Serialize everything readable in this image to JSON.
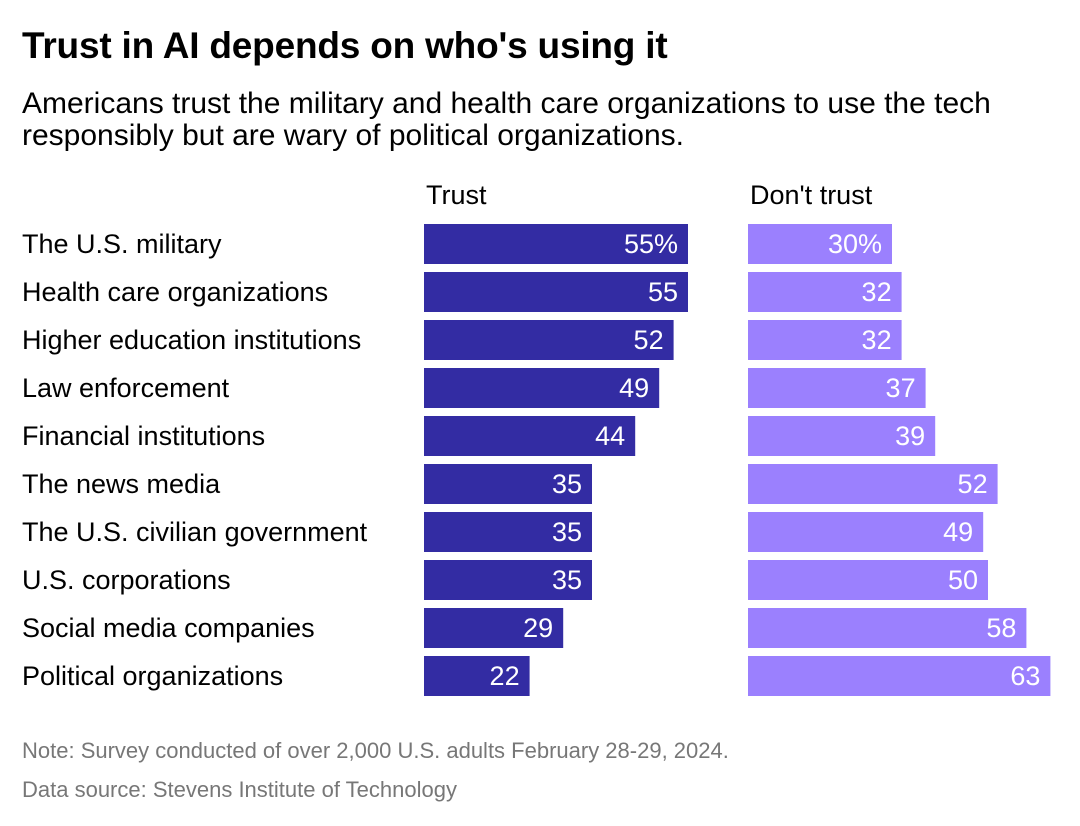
{
  "title": "Trust in AI depends on who's using it",
  "subtitle": "Americans trust the military and health care organizations to use the tech responsibly but are wary of political organizations.",
  "note": "Note: Survey conducted of over 2,000 U.S. adults February 28-29, 2024.",
  "source": "Data source: Stevens Institute of Technology",
  "colors": {
    "trust": "#332ca3",
    "dont_trust": "#9b80fe",
    "label_text": "#ffffff"
  },
  "chart_data": {
    "type": "bar",
    "orientation": "horizontal",
    "categories": [
      "The U.S. military",
      "Health care organizations",
      "Higher education institutions",
      "Law enforcement",
      "Financial institutions",
      "The news media",
      "The U.S. civilian government",
      "U.S. corporations",
      "Social media companies",
      "Political organizations"
    ],
    "series": [
      {
        "name": "Trust",
        "values": [
          55,
          55,
          52,
          49,
          44,
          35,
          35,
          35,
          29,
          22
        ],
        "labels": [
          "55%",
          "55",
          "52",
          "49",
          "44",
          "35",
          "35",
          "35",
          "29",
          "22"
        ]
      },
      {
        "name": "Don't trust",
        "values": [
          30,
          32,
          32,
          37,
          39,
          52,
          49,
          50,
          58,
          63
        ],
        "labels": [
          "30%",
          "32",
          "32",
          "37",
          "39",
          "52",
          "49",
          "50",
          "58",
          "63"
        ]
      }
    ],
    "xlim": [
      0,
      63
    ],
    "unit": "%",
    "legend": "column headers"
  }
}
